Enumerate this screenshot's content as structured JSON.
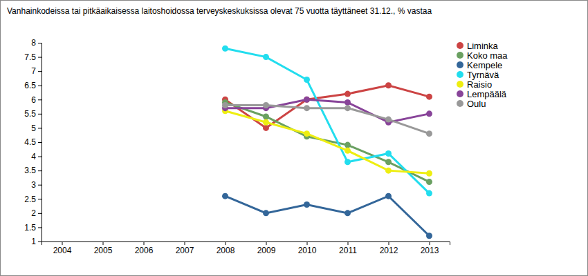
{
  "chart_data": {
    "type": "line",
    "title": "Vanhainkodeissa tai pitkäaikaisessa laitoshoidossa terveyskeskuksissa olevat 75 vuotta täyttäneet 31.12., % vastaa",
    "x": [
      2004,
      2005,
      2006,
      2007,
      2008,
      2009,
      2010,
      2011,
      2012,
      2013
    ],
    "xlim": [
      2003.5,
      2013.5
    ],
    "xticks": [
      2004,
      2005,
      2006,
      2007,
      2008,
      2009,
      2010,
      2011,
      2012,
      2013
    ],
    "ylim": [
      1,
      8
    ],
    "yticks": [
      1,
      1.5,
      2,
      2.5,
      3,
      3.5,
      4,
      4.5,
      5,
      5.5,
      6,
      6.5,
      7,
      7.5,
      8
    ],
    "grid": false,
    "legend": "right",
    "marker": "circle",
    "series": [
      {
        "name": "Liminka",
        "color": "#cc4444",
        "values": [
          null,
          null,
          null,
          null,
          6.0,
          5.0,
          6.0,
          6.2,
          6.5,
          6.1
        ]
      },
      {
        "name": "Koko maa",
        "color": "#6aa061",
        "values": [
          null,
          null,
          null,
          null,
          5.9,
          5.4,
          4.7,
          4.4,
          3.8,
          3.1
        ]
      },
      {
        "name": "Kempele",
        "color": "#336699",
        "values": [
          null,
          null,
          null,
          null,
          2.6,
          2.0,
          2.3,
          2.0,
          2.6,
          1.2
        ]
      },
      {
        "name": "Tyrnävä",
        "color": "#22ddee",
        "values": [
          null,
          null,
          null,
          null,
          7.8,
          7.5,
          6.7,
          3.8,
          4.1,
          2.7
        ]
      },
      {
        "name": "Raisio",
        "color": "#eeee11",
        "values": [
          null,
          null,
          null,
          null,
          5.6,
          5.2,
          4.8,
          4.2,
          3.5,
          3.4
        ]
      },
      {
        "name": "Lempäälä",
        "color": "#884499",
        "values": [
          null,
          null,
          null,
          null,
          5.7,
          5.7,
          6.0,
          5.9,
          5.2,
          5.5
        ]
      },
      {
        "name": "Oulu",
        "color": "#999999",
        "values": [
          null,
          null,
          null,
          null,
          5.8,
          5.8,
          5.7,
          5.7,
          5.3,
          4.8
        ]
      }
    ]
  }
}
